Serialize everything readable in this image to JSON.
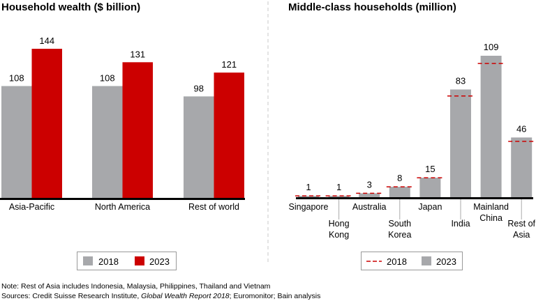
{
  "colors": {
    "y2018": "#a7a8ab",
    "y2023": "#cc0000",
    "dash2018": "#cc0000",
    "axis": "#000000"
  },
  "chart_data": [
    {
      "type": "bar",
      "title": "Household wealth ($ billion)",
      "categories": [
        "Asia-Pacific",
        "North America",
        "Rest of world"
      ],
      "series": [
        {
          "name": "2018",
          "values": [
            108,
            108,
            98
          ]
        },
        {
          "name": "2023",
          "values": [
            144,
            131,
            121
          ]
        }
      ],
      "ylim": [
        0,
        144
      ],
      "grid": false,
      "legend": "bottom"
    },
    {
      "type": "bar",
      "title": "Middle-class households (million)",
      "categories": [
        "Singapore",
        "Hong Kong",
        "Australia",
        "South Korea",
        "Japan",
        "India",
        "Mainland China",
        "Rest of Asia"
      ],
      "category_lines": [
        [
          "Singapore"
        ],
        [
          "Hong",
          "Kong"
        ],
        [
          "Australia"
        ],
        [
          "South",
          "Korea"
        ],
        [
          "Japan"
        ],
        [
          "India"
        ],
        [
          "Mainland",
          "China"
        ],
        [
          "Rest of",
          "Asia"
        ]
      ],
      "series": [
        {
          "name": "2018",
          "style": "dashed-marker",
          "values": [
            1,
            1,
            3,
            8,
            15,
            78,
            103,
            43
          ]
        },
        {
          "name": "2023",
          "style": "bar",
          "values": [
            1,
            1,
            3,
            8,
            15,
            83,
            109,
            46
          ]
        }
      ],
      "data_labels": [
        "1",
        "1",
        "3",
        "8",
        "15",
        "83",
        "109",
        "46"
      ],
      "ylim": [
        0,
        109
      ],
      "grid": false,
      "legend": "bottom"
    }
  ],
  "footer": {
    "note": "Note: Rest of Asia includes Indonesia, Malaysia, Philippines, Thailand and Vietnam",
    "sources_prefix": "Sources: Credit Suisse Research Institute, ",
    "sources_italic": "Global Wealth Report 2018",
    "sources_suffix": "; Euromonitor; Bain analysis"
  }
}
